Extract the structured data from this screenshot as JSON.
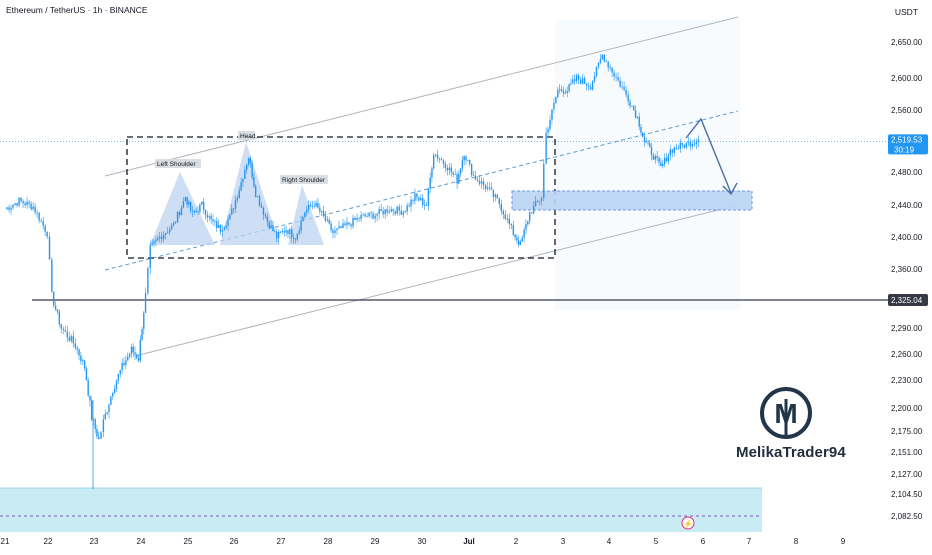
{
  "header": {
    "title": "Ethereum / TetherUS · 1h · BINANCE",
    "currency": "USDT"
  },
  "brand": {
    "name": "MelikaTrader94",
    "logo_letter": "M"
  },
  "colors": {
    "candle": "#2196f3",
    "channel": "#b2b5be",
    "zone_fill": "#bbd4f5",
    "zone_border": "#5b8fe0",
    "support_zone": "#c9ecf4",
    "projection": "#4a6fa5",
    "price_tag": "#2196f3",
    "level_tag": "#363a45",
    "hs_fill": "#bcd3f2",
    "logo": "#22364a"
  },
  "chart_data": {
    "type": "candlestick",
    "title": "Ethereum / TetherUS · 1h · BINANCE",
    "symbol": "ETHUSDT",
    "interval": "1h",
    "exchange": "BINANCE",
    "ylabel": "USDT",
    "grid": false,
    "y_ticks": [
      "2,650.00",
      "2,600.00",
      "2,560.00",
      "2,480.00",
      "2,440.00",
      "2,400.00",
      "2,360.00",
      "2,290.00",
      "2,260.00",
      "2,230.00",
      "2,200.00",
      "2,175.00",
      "2,151.00",
      "2,127.00",
      "2,104.50",
      "2,082.50"
    ],
    "x_ticks": [
      "21",
      "22",
      "23",
      "24",
      "25",
      "26",
      "27",
      "28",
      "29",
      "30",
      "Jul",
      "2",
      "3",
      "4",
      "5",
      "6",
      "7",
      "8",
      "9"
    ],
    "current_price": {
      "value": "2,519.53",
      "countdown": "30:19"
    },
    "horizontal_level": "2,325.04",
    "price_path": [
      [
        21.0,
        2435
      ],
      [
        21.3,
        2445
      ],
      [
        21.6,
        2438
      ],
      [
        21.9,
        2405
      ],
      [
        22.0,
        2330
      ],
      [
        22.2,
        2290
      ],
      [
        22.5,
        2270
      ],
      [
        22.7,
        2245
      ],
      [
        22.85,
        2190
      ],
      [
        23.0,
        2165
      ],
      [
        23.1,
        2185
      ],
      [
        23.3,
        2220
      ],
      [
        23.5,
        2245
      ],
      [
        23.7,
        2265
      ],
      [
        23.85,
        2255
      ],
      [
        24.0,
        2330
      ],
      [
        24.1,
        2385
      ],
      [
        24.3,
        2400
      ],
      [
        24.6,
        2415
      ],
      [
        24.85,
        2450
      ],
      [
        25.0,
        2428
      ],
      [
        25.2,
        2440
      ],
      [
        25.4,
        2420
      ],
      [
        25.6,
        2410
      ],
      [
        25.8,
        2425
      ],
      [
        26.0,
        2460
      ],
      [
        26.2,
        2500
      ],
      [
        26.35,
        2455
      ],
      [
        26.6,
        2420
      ],
      [
        26.8,
        2400
      ],
      [
        27.0,
        2410
      ],
      [
        27.2,
        2400
      ],
      [
        27.4,
        2432
      ],
      [
        27.6,
        2442
      ],
      [
        27.8,
        2425
      ],
      [
        28.0,
        2405
      ],
      [
        28.3,
        2415
      ],
      [
        28.6,
        2425
      ],
      [
        28.9,
        2428
      ],
      [
        29.2,
        2435
      ],
      [
        29.5,
        2432
      ],
      [
        29.75,
        2450
      ],
      [
        30.0,
        2440
      ],
      [
        30.15,
        2505
      ],
      [
        30.4,
        2490
      ],
      [
        30.65,
        2470
      ],
      [
        30.8,
        2505
      ],
      [
        31.0,
        2475
      ],
      [
        31.3,
        2460
      ],
      [
        31.55,
        2442
      ],
      [
        31.85,
        2405
      ],
      [
        32.0,
        2390
      ],
      [
        32.2,
        2430
      ],
      [
        32.45,
        2450
      ],
      [
        32.55,
        2530
      ],
      [
        32.8,
        2585
      ],
      [
        33.0,
        2585
      ],
      [
        33.2,
        2600
      ],
      [
        33.5,
        2590
      ],
      [
        33.75,
        2632
      ],
      [
        34.0,
        2605
      ],
      [
        34.3,
        2575
      ],
      [
        34.5,
        2550
      ],
      [
        34.65,
        2520
      ],
      [
        34.8,
        2505
      ],
      [
        35.0,
        2485
      ],
      [
        35.2,
        2508
      ],
      [
        35.5,
        2515
      ],
      [
        35.8,
        2522
      ]
    ],
    "annotations": [
      {
        "type": "pattern",
        "name": "Head and Shoulders",
        "labels": [
          "Left Shoulder",
          "Head",
          "Right Shoulder"
        ]
      },
      {
        "type": "ascending_channel"
      },
      {
        "type": "demand_zone"
      },
      {
        "type": "projected_path",
        "direction": "down"
      }
    ]
  }
}
